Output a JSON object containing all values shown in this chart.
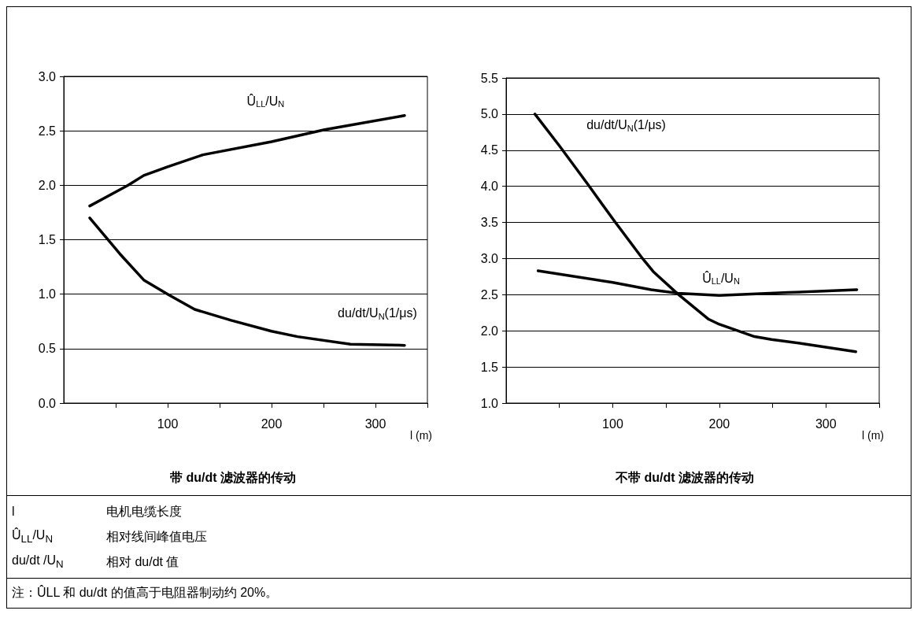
{
  "chart_data": [
    {
      "type": "line",
      "title": "带 du/dt 滤波器的传动",
      "xlabel": "l (m)",
      "xlim": [
        0,
        350
      ],
      "xticks": [
        {
          "value": 50,
          "label": null
        },
        100,
        {
          "value": 150,
          "label": null
        },
        200,
        {
          "value": 250,
          "label": null
        },
        300,
        {
          "value": 350,
          "label": null
        }
      ],
      "ylim": [
        0,
        3
      ],
      "yticks": [
        {
          "value": 0,
          "label": "0.0"
        },
        0.5,
        {
          "value": 1,
          "label": "1.0"
        },
        1.5,
        {
          "value": 2,
          "label": "2.0"
        },
        2.5,
        {
          "value": 3,
          "label": "3.0"
        }
      ],
      "grid": "y",
      "legend": false,
      "marker": "none",
      "line_style": "solid",
      "series": [
        {
          "name": "Û$_{LL}$/U$_{N}$",
          "color": "#000000",
          "x": [
            25,
            62,
            77,
            100,
            134,
            200,
            251,
            328
          ],
          "values": [
            1.81,
            2.0,
            2.09,
            2.17,
            2.28,
            2.4,
            2.51,
            2.64
          ]
        },
        {
          "name": "du/dt/U$_{N}$(1/μs)",
          "color": "#000000",
          "x": [
            25,
            54,
            77,
            100,
            126,
            161,
            200,
            225,
            276,
            328
          ],
          "values": [
            1.7,
            1.37,
            1.13,
            1.0,
            0.86,
            0.76,
            0.66,
            0.61,
            0.54,
            0.53
          ]
        }
      ]
    },
    {
      "type": "line",
      "title": "不带 du/dt 滤波器的传动",
      "xlabel": "l (m)",
      "xlim": [
        0,
        350
      ],
      "xticks": [
        {
          "value": 50,
          "label": null
        },
        100,
        {
          "value": 150,
          "label": null
        },
        200,
        {
          "value": 250,
          "label": null
        },
        300,
        {
          "value": 350,
          "label": null
        }
      ],
      "ylim": [
        1,
        5.5
      ],
      "yticks": [
        {
          "value": 1,
          "label": "1.0"
        },
        1.5,
        {
          "value": 2,
          "label": "2.0"
        },
        2.5,
        {
          "value": 3,
          "label": "3.0"
        },
        3.5,
        {
          "value": 4,
          "label": "4.0"
        },
        4.5,
        {
          "value": 5,
          "label": "5.0"
        },
        5.5
      ],
      "grid": "y",
      "legend": false,
      "marker": "none",
      "line_style": "solid",
      "series": [
        {
          "name": "du/dt/U$_{N}$(1/μs)",
          "color": "#000000",
          "x": [
            27,
            50,
            77,
            101,
            128,
            138,
            161,
            190,
            200,
            233,
            249,
            279,
            328
          ],
          "values": [
            5.0,
            4.56,
            4.02,
            3.53,
            3.0,
            2.82,
            2.51,
            2.16,
            2.09,
            1.92,
            1.88,
            1.82,
            1.71
          ]
        },
        {
          "name": "Û$_{LL}$/U$_{N}$",
          "color": "#000000",
          "x": [
            30,
            100,
            136,
            161,
            200,
            265,
            329
          ],
          "values": [
            2.83,
            2.67,
            2.57,
            2.52,
            2.49,
            2.53,
            2.57
          ]
        }
      ]
    },
    {
      "type": "other",
      "annotations": [
        "l",
        "电机电缆长度",
        "Û$_{LL}$/U$_{N}$",
        "相对线间峰值电压",
        "du/dt /U$_{N}$",
        "相对 du/dt 值",
        "注：ÛLL 和 du/dt 的值高于电阻器制动约 20%。"
      ]
    }
  ]
}
